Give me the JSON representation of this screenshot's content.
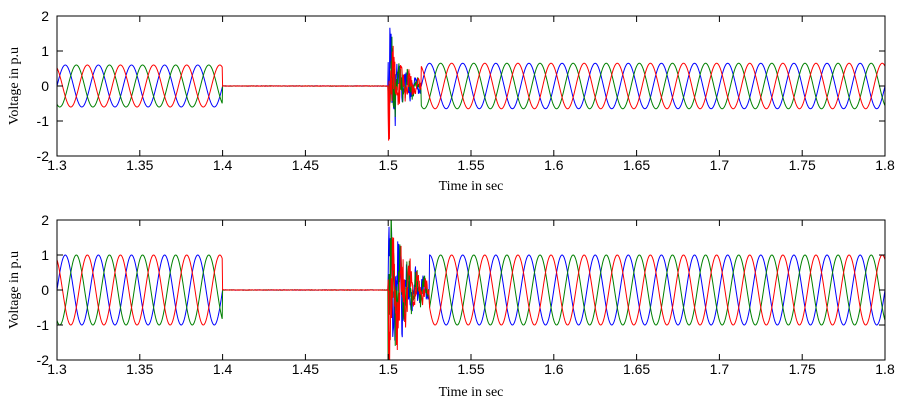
{
  "chart_data": [
    {
      "type": "line",
      "xlabel": "Time in sec",
      "ylabel": "Voltage in p.u",
      "xlim": [
        1.3,
        1.8
      ],
      "ylim": [
        -2,
        2
      ],
      "xticks": [
        "1.3",
        "1.35",
        "1.4",
        "1.45",
        "1.5",
        "1.55",
        "1.6",
        "1.65",
        "1.7",
        "1.75",
        "1.8"
      ],
      "yticks": [
        "-2",
        "-1",
        "0",
        "1",
        "2"
      ],
      "grid": false,
      "frequency_hz": 50,
      "series": [
        {
          "phase_deg": 0,
          "color": "#0000ff"
        },
        {
          "phase_deg": -120,
          "color": "#008000"
        },
        {
          "phase_deg": 120,
          "color": "#ff0000"
        }
      ],
      "segments": [
        {
          "x": [
            1.3,
            1.4
          ],
          "amplitude": 0.6
        },
        {
          "x": [
            1.4,
            1.5
          ],
          "amplitude": 0.0
        },
        {
          "x": [
            1.5,
            1.52
          ],
          "amplitude": 1.6,
          "transient": true
        },
        {
          "x": [
            1.52,
            1.8
          ],
          "amplitude": 0.65
        }
      ]
    },
    {
      "type": "line",
      "xlabel": "Time in sec",
      "ylabel": "Voltage in p.u",
      "xlim": [
        1.3,
        1.8
      ],
      "ylim": [
        -2,
        2
      ],
      "xticks": [
        "1.3",
        "1.35",
        "1.4",
        "1.45",
        "1.5",
        "1.55",
        "1.6",
        "1.65",
        "1.7",
        "1.75",
        "1.8"
      ],
      "yticks": [
        "-2",
        "-1",
        "0",
        "1",
        "2"
      ],
      "grid": false,
      "frequency_hz": 50,
      "series": [
        {
          "phase_deg": 0,
          "color": "#0000ff"
        },
        {
          "phase_deg": -120,
          "color": "#008000"
        },
        {
          "phase_deg": 120,
          "color": "#ff0000"
        }
      ],
      "segments": [
        {
          "x": [
            1.3,
            1.4
          ],
          "amplitude": 1.0
        },
        {
          "x": [
            1.4,
            1.5
          ],
          "amplitude": 0.0
        },
        {
          "x": [
            1.5,
            1.525
          ],
          "amplitude": 2.3,
          "transient": true
        },
        {
          "x": [
            1.525,
            1.8
          ],
          "amplitude": 1.0
        }
      ]
    }
  ]
}
